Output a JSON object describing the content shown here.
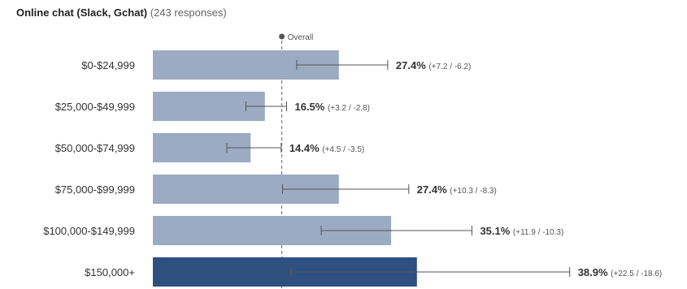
{
  "header": {
    "title": "Online chat (Slack, Gchat)",
    "responses": "(243 responses)"
  },
  "colors": {
    "bar": "#9aabc2",
    "bar_highlight": "#2d5080",
    "error_bar": "#555555",
    "overall_line": "#666666"
  },
  "chart_data": {
    "type": "bar",
    "orientation": "horizontal",
    "title": "Online chat (Slack, Gchat)",
    "subtitle": "(243 responses)",
    "categories": [
      "$0-$24,999",
      "$25,000-$49,999",
      "$50,000-$74,999",
      "$75,000-$99,999",
      "$100,000-$149,999",
      "$150,000+"
    ],
    "values": [
      27.4,
      16.5,
      14.4,
      27.4,
      35.1,
      38.9
    ],
    "value_labels": [
      "27.4%",
      "16.5%",
      "14.4%",
      "27.4%",
      "35.1%",
      "38.9%"
    ],
    "error_labels": [
      "(+7.2 / -6.2)",
      "(+3.2 / -2.8)",
      "(+4.5 / -3.5)",
      "(+10.3 / -8.3)",
      "(+11.9 / -10.3)",
      "(+22.5 / -18.6)"
    ],
    "error_plus": [
      7.2,
      3.2,
      4.5,
      10.3,
      11.9,
      22.5
    ],
    "error_minus": [
      6.2,
      2.8,
      3.5,
      8.3,
      10.3,
      18.6
    ],
    "highlight_index": 5,
    "reference_line": {
      "label": "Overall",
      "value": 19
    },
    "xlim": [
      0,
      62
    ]
  }
}
